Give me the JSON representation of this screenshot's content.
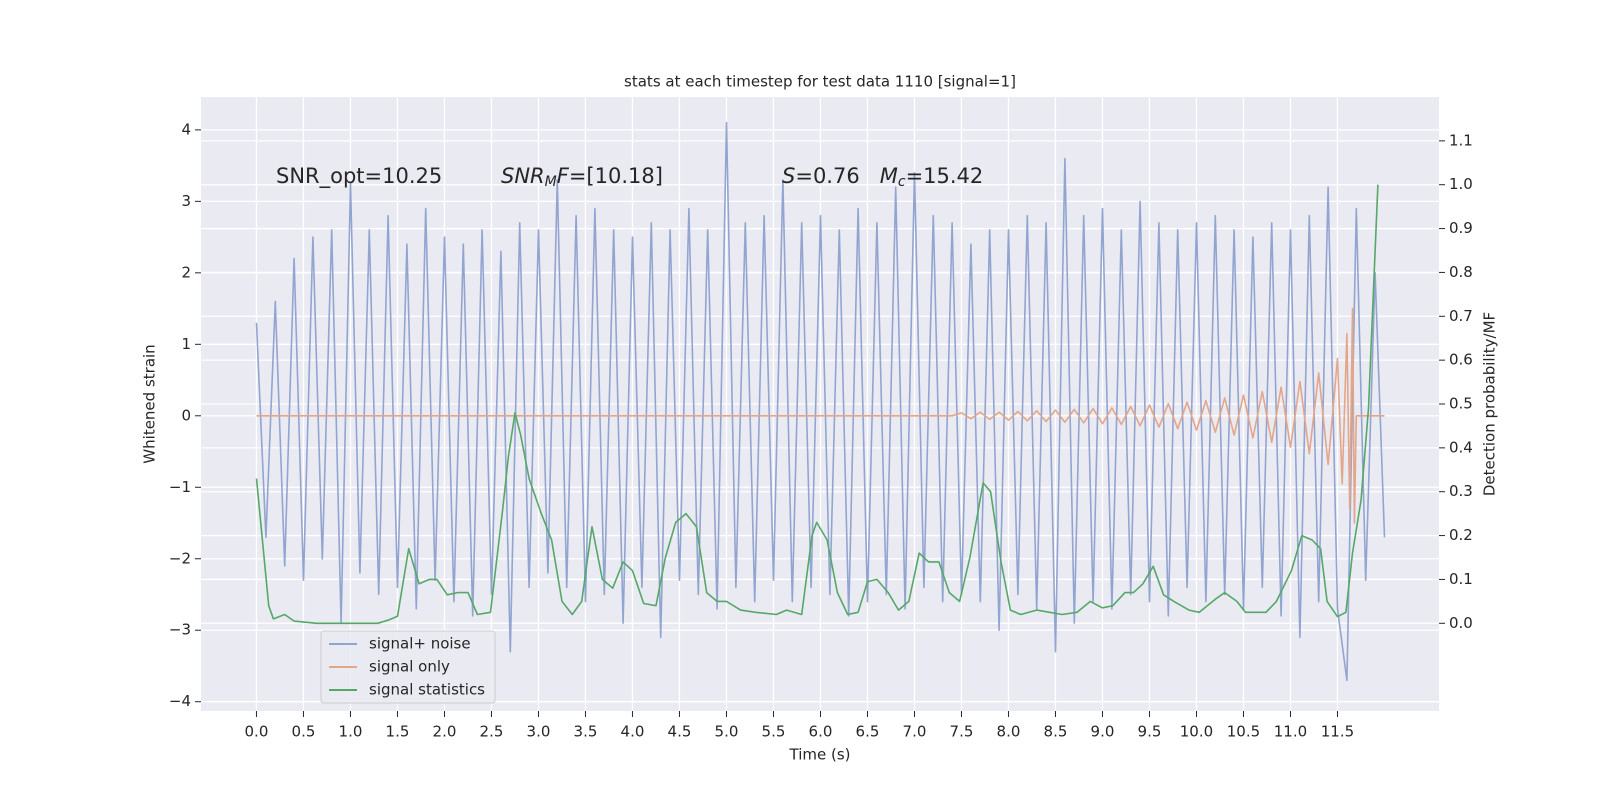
{
  "chart_data": {
    "type": "line",
    "title": "stats at each timestep for test data 1110 [signal=1]",
    "xlabel": "Time (s)",
    "ylabel": "Whitened strain",
    "y2label": "Detection probability/MF",
    "xlim": [
      -0.59,
      12.58
    ],
    "ylim": [
      -4.13,
      4.46
    ],
    "y2lim": [
      -0.2,
      1.2
    ],
    "xticks": [
      {
        "value": 0,
        "label": "0.0"
      },
      0.5,
      {
        "value": 1,
        "label": "1.0"
      },
      1.5,
      {
        "value": 2,
        "label": "2.0"
      },
      2.5,
      {
        "value": 3,
        "label": "3.0"
      },
      3.5,
      {
        "value": 4,
        "label": "4.0"
      },
      4.5,
      {
        "value": 5,
        "label": "5.0"
      },
      5.5,
      {
        "value": 6,
        "label": "6.0"
      },
      6.5,
      {
        "value": 7,
        "label": "7.0"
      },
      7.5,
      {
        "value": 8,
        "label": "8.0"
      },
      8.5,
      {
        "value": 9,
        "label": "9.0"
      },
      9.5,
      {
        "value": 10,
        "label": "10.0"
      },
      10.5,
      {
        "value": 11,
        "label": "11.0"
      },
      11.5
    ],
    "yticks": [
      {
        "value": -4,
        "label": "−4"
      },
      {
        "value": -3,
        "label": "−3"
      },
      {
        "value": -2,
        "label": "−2"
      },
      {
        "value": -1,
        "label": "−1"
      },
      0,
      1,
      2,
      3,
      4
    ],
    "y2ticks": [
      {
        "value": 0,
        "label": "0.0"
      },
      0.1,
      0.2,
      0.3,
      0.4,
      0.5,
      0.6,
      0.7,
      0.8,
      0.9,
      {
        "value": 1,
        "label": "1.0"
      },
      1.1
    ],
    "grid": true,
    "legend": "lower left",
    "annotations": [
      [
        {
          "text": "SNR_opt=10.25"
        }
      ],
      [
        {
          "text": "SNR",
          "italic": true
        },
        {
          "text": "M",
          "italic": true,
          "sub": true
        },
        {
          "text": "F",
          "italic": true
        },
        {
          "text": "=[10.18]"
        }
      ],
      [
        {
          "text": "S",
          "italic": true
        },
        {
          "text": "=0.76   "
        },
        {
          "text": "M",
          "italic": true
        },
        {
          "text": "c",
          "italic": true,
          "sub": true
        },
        {
          "text": "=15.42"
        }
      ]
    ],
    "series": [
      {
        "name": "signal+ noise",
        "color": "#92a5d0",
        "x": [
          0.0,
          0.1,
          0.2,
          0.3,
          0.4,
          0.5,
          0.6,
          0.7,
          0.8,
          0.9,
          1.0,
          1.1,
          1.2,
          1.3,
          1.4,
          1.5,
          1.6,
          1.7,
          1.8,
          1.9,
          2.0,
          2.1,
          2.2,
          2.3,
          2.4,
          2.5,
          2.6,
          2.7,
          2.8,
          2.9,
          3.0,
          3.1,
          3.2,
          3.3,
          3.4,
          3.5,
          3.6,
          3.7,
          3.8,
          3.9,
          4.0,
          4.1,
          4.2,
          4.3,
          4.4,
          4.5,
          4.6,
          4.7,
          4.8,
          4.9,
          5.0,
          5.1,
          5.2,
          5.3,
          5.4,
          5.5,
          5.6,
          5.7,
          5.8,
          5.9,
          6.0,
          6.1,
          6.2,
          6.3,
          6.4,
          6.5,
          6.6,
          6.7,
          6.8,
          6.9,
          7.0,
          7.1,
          7.2,
          7.3,
          7.4,
          7.5,
          7.6,
          7.7,
          7.8,
          7.9,
          8.0,
          8.1,
          8.2,
          8.3,
          8.4,
          8.5,
          8.6,
          8.7,
          8.8,
          8.9,
          9.0,
          9.1,
          9.2,
          9.3,
          9.4,
          9.5,
          9.6,
          9.7,
          9.8,
          9.9,
          10.0,
          10.1,
          10.2,
          10.3,
          10.4,
          10.5,
          10.6,
          10.7,
          10.8,
          10.9,
          11.0,
          11.1,
          11.2,
          11.3,
          11.4,
          11.5,
          11.6,
          11.7,
          11.8,
          11.9,
          12.0
        ],
        "values": [
          1.3,
          -1.7,
          1.6,
          -2.1,
          2.2,
          -2.3,
          2.5,
          -2.0,
          2.6,
          -2.9,
          3.25,
          -2.2,
          2.6,
          -2.5,
          2.8,
          -2.4,
          2.4,
          -2.7,
          2.9,
          -2.3,
          2.5,
          -2.6,
          2.4,
          -2.8,
          2.6,
          -2.5,
          2.3,
          -3.3,
          2.7,
          -2.4,
          2.6,
          -2.2,
          3.3,
          -2.4,
          2.8,
          -2.6,
          2.9,
          -2.5,
          2.6,
          -2.9,
          2.5,
          -2.4,
          2.7,
          -3.1,
          2.6,
          -2.3,
          2.9,
          -2.5,
          2.6,
          -2.7,
          4.1,
          -2.4,
          2.7,
          -2.6,
          2.8,
          -2.3,
          3.3,
          -2.6,
          2.7,
          -2.4,
          2.8,
          -2.5,
          2.6,
          -2.8,
          2.9,
          -2.6,
          2.7,
          -2.5,
          3.2,
          -2.7,
          3.4,
          -2.4,
          2.8,
          -2.6,
          2.7,
          -2.5,
          2.4,
          -2.6,
          2.6,
          -3.0,
          2.6,
          -2.5,
          2.8,
          -2.7,
          2.7,
          -3.3,
          3.6,
          -2.9,
          2.8,
          -2.6,
          2.9,
          -2.7,
          2.6,
          -2.5,
          3.0,
          -2.6,
          2.7,
          -2.8,
          2.6,
          -2.4,
          2.7,
          -2.6,
          2.8,
          -2.5,
          2.6,
          -2.7,
          2.5,
          -2.4,
          2.7,
          -2.8,
          2.6,
          -3.1,
          2.8,
          -2.6,
          3.2,
          -2.7,
          -3.7,
          2.9,
          -2.3,
          2.0,
          -1.7
        ]
      },
      {
        "name": "signal only",
        "color": "#e3a68a",
        "x": [
          0.0,
          7.4,
          7.5,
          7.6,
          7.7,
          7.8,
          7.9,
          8.0,
          8.1,
          8.2,
          8.3,
          8.4,
          8.5,
          8.6,
          8.7,
          8.8,
          8.9,
          9.0,
          9.1,
          9.2,
          9.3,
          9.4,
          9.5,
          9.6,
          9.7,
          9.8,
          9.9,
          10.0,
          10.1,
          10.2,
          10.3,
          10.4,
          10.5,
          10.6,
          10.7,
          10.8,
          10.9,
          11.0,
          11.1,
          11.2,
          11.3,
          11.4,
          11.5,
          11.55,
          11.6,
          11.63,
          11.66,
          11.68,
          11.7,
          12.0
        ],
        "values": [
          0,
          0,
          0.04,
          -0.04,
          0.05,
          -0.05,
          0.05,
          -0.06,
          0.06,
          -0.07,
          0.07,
          -0.08,
          0.08,
          -0.09,
          0.09,
          -0.1,
          0.1,
          -0.11,
          0.11,
          -0.12,
          0.13,
          -0.14,
          0.15,
          -0.16,
          0.17,
          -0.18,
          0.19,
          -0.2,
          0.21,
          -0.23,
          0.25,
          -0.27,
          0.29,
          -0.31,
          0.34,
          -0.37,
          0.4,
          -0.44,
          0.48,
          -0.53,
          0.6,
          -0.68,
          0.8,
          -0.95,
          1.15,
          -1.3,
          1.5,
          -1.5,
          0,
          0
        ]
      },
      {
        "name": "signal statistics",
        "color": "#55a868",
        "axis": "y2",
        "x": [
          0.0,
          0.13,
          0.18,
          0.3,
          0.4,
          0.64,
          1.29,
          1.4,
          1.5,
          1.62,
          1.73,
          1.84,
          1.92,
          2.03,
          2.14,
          2.25,
          2.35,
          2.49,
          2.62,
          2.68,
          2.75,
          2.81,
          2.9,
          3.03,
          3.14,
          3.25,
          3.36,
          3.46,
          3.57,
          3.68,
          3.79,
          3.9,
          4.0,
          4.12,
          4.25,
          4.35,
          4.46,
          4.57,
          4.68,
          4.79,
          4.9,
          5.0,
          5.15,
          5.31,
          5.53,
          5.64,
          5.8,
          5.91,
          5.96,
          6.07,
          6.18,
          6.29,
          6.4,
          6.5,
          6.6,
          6.72,
          6.83,
          6.94,
          7.05,
          7.15,
          7.26,
          7.37,
          7.48,
          7.59,
          7.73,
          7.81,
          7.92,
          8.02,
          8.13,
          8.3,
          8.57,
          8.73,
          8.87,
          9.0,
          9.11,
          9.24,
          9.33,
          9.43,
          9.54,
          9.65,
          9.76,
          9.92,
          10.03,
          10.2,
          10.3,
          10.43,
          10.52,
          10.74,
          10.85,
          11.01,
          11.12,
          11.23,
          11.32,
          11.39,
          11.5,
          11.59,
          11.66,
          11.75,
          11.83,
          11.93
        ],
        "values": [
          0.33,
          0.04,
          0.01,
          0.02,
          0.005,
          0.0,
          0.0,
          0.007,
          0.016,
          0.17,
          0.09,
          0.1,
          0.1,
          0.065,
          0.07,
          0.07,
          0.02,
          0.025,
          0.26,
          0.38,
          0.48,
          0.43,
          0.33,
          0.25,
          0.19,
          0.05,
          0.02,
          0.05,
          0.22,
          0.1,
          0.08,
          0.14,
          0.12,
          0.045,
          0.04,
          0.15,
          0.23,
          0.25,
          0.22,
          0.07,
          0.05,
          0.05,
          0.03,
          0.025,
          0.02,
          0.03,
          0.02,
          0.2,
          0.23,
          0.19,
          0.07,
          0.02,
          0.025,
          0.095,
          0.1,
          0.07,
          0.03,
          0.05,
          0.16,
          0.14,
          0.14,
          0.07,
          0.05,
          0.15,
          0.32,
          0.3,
          0.14,
          0.03,
          0.02,
          0.03,
          0.02,
          0.025,
          0.05,
          0.035,
          0.04,
          0.07,
          0.07,
          0.09,
          0.13,
          0.065,
          0.05,
          0.03,
          0.025,
          0.055,
          0.07,
          0.05,
          0.025,
          0.025,
          0.05,
          0.12,
          0.2,
          0.19,
          0.17,
          0.05,
          0.015,
          0.025,
          0.16,
          0.28,
          0.49,
          1.0
        ]
      }
    ]
  }
}
